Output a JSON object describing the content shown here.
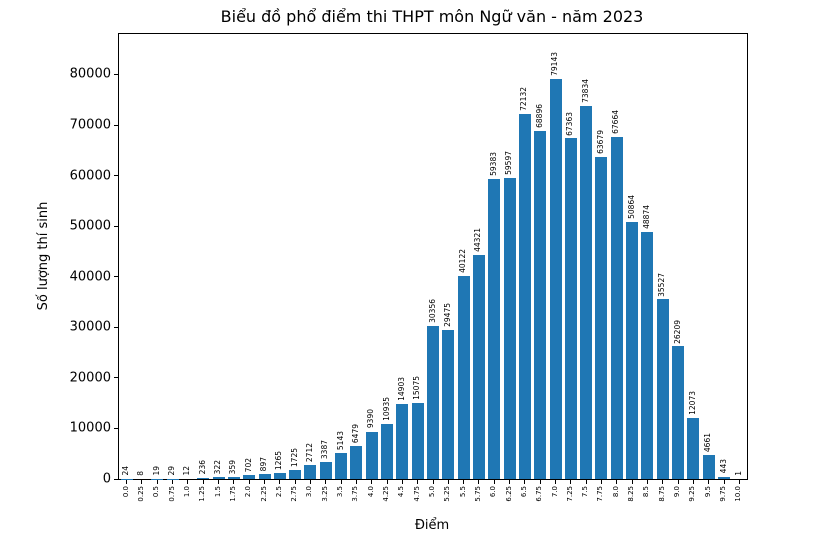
{
  "chart_data": {
    "type": "bar",
    "title": "Biểu đồ phổ điểm thi THPT môn Ngữ văn - năm 2023",
    "xlabel": "Điểm",
    "ylabel": "Số lượng thí sinh",
    "categories": [
      "0.0",
      "0.25",
      "0.5",
      "0.75",
      "1.0",
      "1.25",
      "1.5",
      "1.75",
      "2.0",
      "2.25",
      "2.5",
      "2.75",
      "3.0",
      "3.25",
      "3.5",
      "3.75",
      "4.0",
      "4.25",
      "4.5",
      "4.75",
      "5.0",
      "5.25",
      "5.5",
      "5.75",
      "6.0",
      "6.25",
      "6.5",
      "6.75",
      "7.0",
      "7.25",
      "7.5",
      "7.75",
      "8.0",
      "8.25",
      "8.5",
      "8.75",
      "9.0",
      "9.25",
      "9.5",
      "9.75",
      "10.0"
    ],
    "values": [
      24,
      8,
      19,
      29,
      12,
      236,
      322,
      359,
      702,
      897,
      1265,
      1725,
      2712,
      3387,
      5143,
      6479,
      9390,
      10935,
      14903,
      15075,
      30356,
      29475,
      40122,
      44321,
      59383,
      59597,
      72132,
      68896,
      79143,
      67363,
      73834,
      63679,
      67664,
      50864,
      48874,
      35527,
      26209,
      12073,
      4661,
      443,
      1
    ],
    "yticks": [
      0,
      10000,
      20000,
      30000,
      40000,
      50000,
      60000,
      70000,
      80000
    ],
    "ylim": [
      0,
      88000
    ],
    "bar_color": "#1f77b4",
    "grid": false,
    "legend": "none",
    "bar_value_labels_rotation": 90,
    "xtick_rotation": 90
  }
}
